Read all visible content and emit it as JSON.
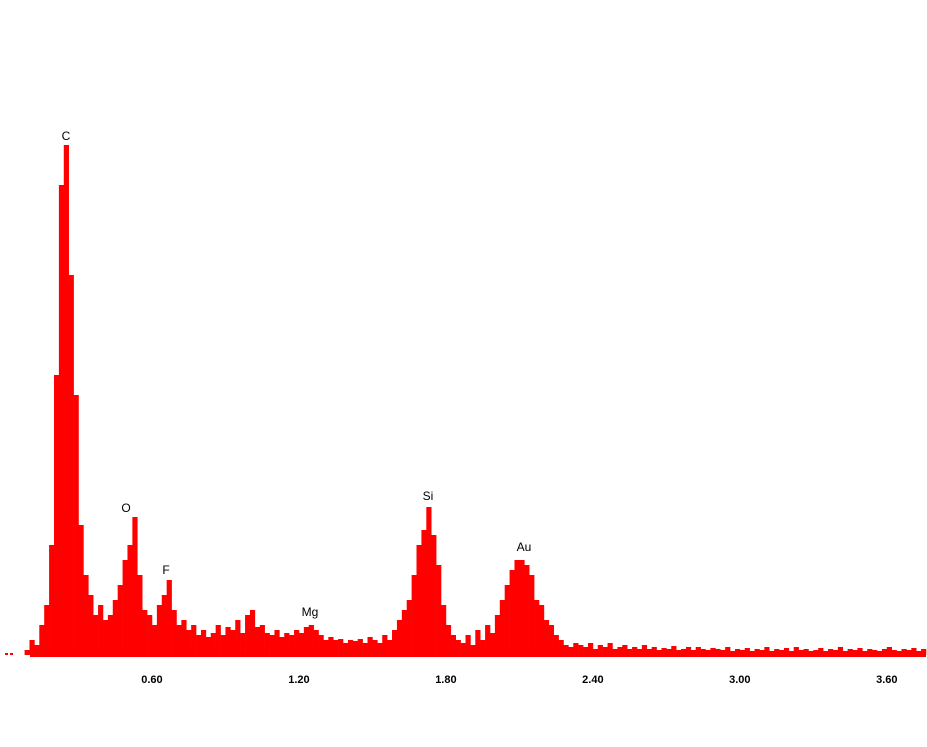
{
  "chart_data": {
    "type": "bar",
    "color": "#ff0000",
    "annotations": [
      "C",
      "O",
      "F",
      "Mg",
      "Si",
      "Au"
    ],
    "x": [
      0,
      0.02,
      0.04,
      0.06,
      0.08,
      0.1,
      0.12,
      0.14,
      0.16,
      0.18,
      0.2,
      0.22,
      0.24,
      0.26,
      0.28,
      0.3,
      0.32,
      0.34,
      0.36,
      0.38,
      0.4,
      0.42,
      0.44,
      0.46,
      0.48,
      0.5,
      0.52,
      0.54,
      0.56,
      0.58,
      0.6,
      0.62,
      0.64,
      0.66,
      0.68,
      0.7,
      0.72,
      0.74,
      0.76,
      0.78,
      0.8,
      0.82,
      0.84,
      0.86,
      0.88,
      0.9,
      0.92,
      0.94,
      0.96,
      0.98,
      1,
      1.02,
      1.04,
      1.06,
      1.08,
      1.1,
      1.12,
      1.14,
      1.16,
      1.18,
      1.2,
      1.22,
      1.24,
      1.26,
      1.28,
      1.3,
      1.32,
      1.34,
      1.36,
      1.38,
      1.4,
      1.42,
      1.44,
      1.46,
      1.48,
      1.5,
      1.52,
      1.54,
      1.56,
      1.58,
      1.6,
      1.62,
      1.64,
      1.66,
      1.68,
      1.7,
      1.72,
      1.74,
      1.76,
      1.78,
      1.8,
      1.82,
      1.84,
      1.86,
      1.88,
      1.9,
      1.92,
      1.94,
      1.96,
      1.98,
      2,
      2.02,
      2.04,
      2.06,
      2.08,
      2.1,
      2.12,
      2.14,
      2.16,
      2.18,
      2.2,
      2.22,
      2.24,
      2.26,
      2.28,
      2.3,
      2.32,
      2.34,
      2.36,
      2.38,
      2.4,
      2.42,
      2.44,
      2.46,
      2.48,
      2.5,
      2.52,
      2.54,
      2.56,
      2.58,
      2.6,
      2.62,
      2.64,
      2.66,
      2.68,
      2.7,
      2.72,
      2.74,
      2.76,
      2.78,
      2.8,
      2.82,
      2.84,
      2.86,
      2.88,
      2.9,
      2.92,
      2.94,
      2.96,
      2.98,
      3,
      3.02,
      3.04,
      3.06,
      3.08,
      3.1,
      3.12,
      3.14,
      3.16,
      3.18,
      3.2,
      3.22,
      3.24,
      3.26,
      3.28,
      3.3,
      3.32,
      3.34,
      3.36,
      3.38,
      3.4,
      3.42,
      3.44,
      3.46,
      3.48,
      3.5,
      3.52,
      3.54,
      3.56,
      3.58,
      3.6,
      3.62,
      3.64,
      3.66,
      3.68,
      3.7,
      3.72,
      3.74
    ],
    "values": [
      0,
      0,
      0,
      0,
      5,
      15,
      10,
      30,
      50,
      110,
      280,
      470,
      510,
      380,
      260,
      130,
      80,
      60,
      40,
      50,
      35,
      40,
      55,
      70,
      95,
      110,
      138,
      80,
      45,
      40,
      30,
      50,
      60,
      75,
      45,
      30,
      35,
      25,
      30,
      20,
      25,
      18,
      22,
      30,
      20,
      28,
      25,
      35,
      22,
      40,
      45,
      28,
      30,
      22,
      20,
      25,
      18,
      22,
      20,
      25,
      22,
      28,
      30,
      25,
      20,
      15,
      18,
      15,
      16,
      12,
      15,
      14,
      16,
      12,
      18,
      15,
      12,
      20,
      15,
      25,
      35,
      45,
      55,
      80,
      110,
      125,
      148,
      120,
      90,
      50,
      30,
      20,
      15,
      12,
      20,
      10,
      25,
      15,
      30,
      22,
      40,
      55,
      70,
      85,
      95,
      95,
      90,
      80,
      55,
      50,
      35,
      30,
      20,
      15,
      10,
      8,
      12,
      10,
      8,
      12,
      6,
      10,
      8,
      12,
      6,
      8,
      10,
      6,
      8,
      6,
      10,
      6,
      8,
      5,
      7,
      6,
      9,
      5,
      6,
      8,
      5,
      8,
      6,
      5,
      7,
      6,
      5,
      8,
      4,
      6,
      5,
      7,
      4,
      6,
      5,
      8,
      4,
      6,
      5,
      7,
      4,
      8,
      5,
      6,
      4,
      5,
      7,
      4,
      6,
      5,
      8,
      4,
      6,
      5,
      7,
      4,
      6,
      5,
      4,
      6,
      8,
      5,
      4,
      6,
      5,
      7,
      4,
      6
    ],
    "xlim": [
      0,
      3.76
    ],
    "ylim": [
      0,
      520
    ],
    "xticks": [
      {
        "value": 0.6,
        "label": "0.60"
      },
      {
        "value": 1.2,
        "label": "1.20"
      },
      {
        "value": 1.8,
        "label": "1.80"
      },
      {
        "value": 2.4,
        "label": "2.40"
      },
      {
        "value": 3.0,
        "label": "3.00"
      },
      {
        "value": 3.6,
        "label": "3.60"
      }
    ],
    "grid": false
  }
}
